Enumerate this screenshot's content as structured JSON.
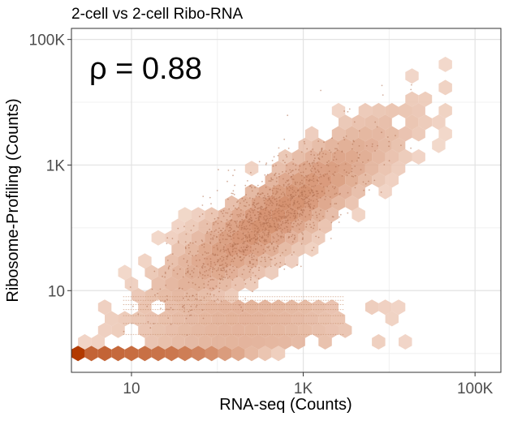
{
  "chart_data": {
    "type": "hexbin-scatter",
    "title": "2-cell vs 2-cell Ribo-RNA",
    "xlabel": "RNA-seq (Counts)",
    "ylabel": "Ribosome-Profiling (Counts)",
    "annotation": "ρ = 0.88",
    "x_scale": "log10",
    "y_scale": "log10",
    "xlim": [
      2,
      200000
    ],
    "ylim": [
      0.5,
      150000
    ],
    "x_ticks": [
      10,
      1000,
      100000
    ],
    "x_tick_labels": [
      "10",
      "1K",
      "100K"
    ],
    "y_ticks": [
      10,
      1000,
      100000
    ],
    "y_tick_labels": [
      "10",
      "1K",
      "100K"
    ],
    "grid": true,
    "legend": "none",
    "fill_color_low": "#f7e3d8",
    "fill_color_high": "#b23a00",
    "point_color": "#b07050",
    "hex_bins": [
      {
        "x": 1,
        "y": 1,
        "density": 1.0
      },
      {
        "x": 2,
        "y": 1,
        "density": 0.75
      },
      {
        "x": 3,
        "y": 1,
        "density": 0.75
      },
      {
        "x": 4,
        "y": 1,
        "density": 0.72
      },
      {
        "x": 5,
        "y": 1,
        "density": 0.7
      },
      {
        "x": 6,
        "y": 1,
        "density": 0.68
      },
      {
        "x": 7,
        "y": 1,
        "density": 0.66
      },
      {
        "x": 8,
        "y": 1,
        "density": 0.64
      },
      {
        "x": 9,
        "y": 1,
        "density": 0.6
      },
      {
        "x": 10,
        "y": 1,
        "density": 0.56
      },
      {
        "x": 11,
        "y": 1,
        "density": 0.5
      },
      {
        "x": 12,
        "y": 1,
        "density": 0.42
      },
      {
        "x": 13,
        "y": 1,
        "density": 0.35
      },
      {
        "x": 14,
        "y": 1,
        "density": 0.25
      },
      {
        "x": 15,
        "y": 1,
        "density": 0.18
      },
      {
        "x": 16,
        "y": 1,
        "density": 0.12
      }
    ]
  }
}
